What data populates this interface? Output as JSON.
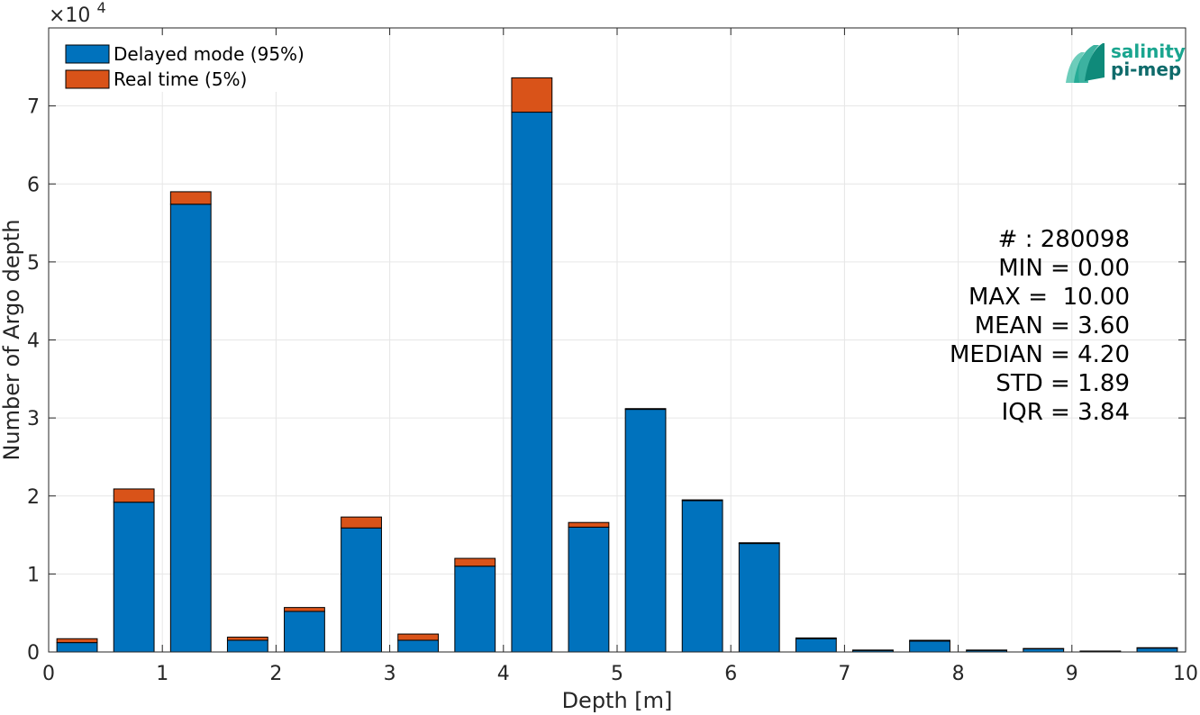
{
  "chart_data": {
    "type": "bar",
    "stacked": true,
    "xlabel": "Depth [m]",
    "ylabel": "Number of Argo depth",
    "y_multiplier_label": "×10",
    "y_multiplier_exponent": "4",
    "xlim": [
      0,
      10
    ],
    "ylim": [
      0,
      80000
    ],
    "xticks": [
      0,
      1,
      2,
      3,
      4,
      5,
      6,
      7,
      8,
      9,
      10
    ],
    "yticks": [
      0,
      10000,
      20000,
      30000,
      40000,
      50000,
      60000,
      70000
    ],
    "ytick_labels": [
      "0",
      "1",
      "2",
      "3",
      "4",
      "5",
      "6",
      "7"
    ],
    "grid": true,
    "legend_placement": "top-left",
    "x": [
      0.25,
      0.75,
      1.25,
      1.75,
      2.25,
      2.75,
      3.25,
      3.75,
      4.25,
      4.75,
      5.25,
      5.75,
      6.25,
      6.75,
      7.25,
      7.75,
      8.25,
      8.75,
      9.25,
      9.75
    ],
    "series": [
      {
        "name": "Delayed mode (95%)",
        "color": "#0072bd",
        "values": [
          1200,
          19200,
          57400,
          1500,
          5200,
          15900,
          1500,
          11000,
          69200,
          16000,
          31100,
          19400,
          13900,
          1700,
          200,
          1400,
          200,
          400,
          100,
          500
        ]
      },
      {
        "name": "Real time (5%)",
        "color": "#d95319",
        "values": [
          500,
          1700,
          1600,
          400,
          500,
          1400,
          800,
          1000,
          4400,
          600,
          100,
          100,
          100,
          100,
          50,
          100,
          50,
          50,
          20,
          50
        ]
      }
    ]
  },
  "stats": [
    "# : 280098",
    "MIN = 0.00",
    "MAX =  10.00",
    "MEAN = 3.60",
    "MEDIAN = 4.20",
    "STD = 1.89",
    "IQR = 3.84"
  ],
  "logo": {
    "line1": "salinity",
    "line2": "pi-mep",
    "color1": "#1aa58f",
    "color2": "#0f6b6b"
  }
}
